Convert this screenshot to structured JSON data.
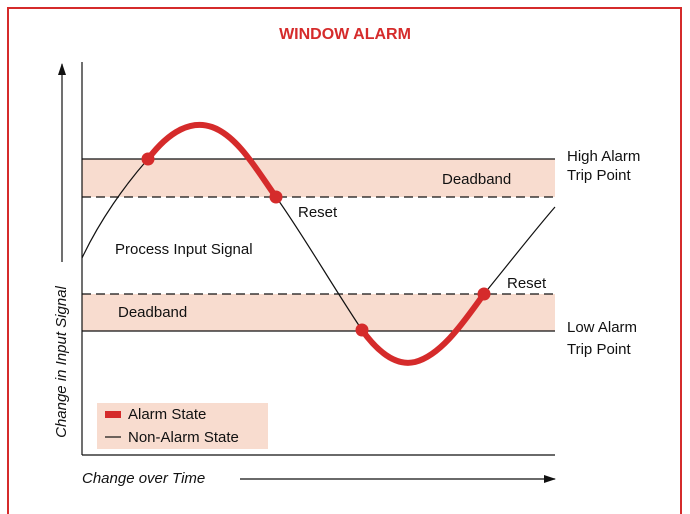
{
  "title": "WINDOW ALARM",
  "high_trip": {
    "line1": "High Alarm",
    "line2": "Trip Point"
  },
  "low_trip": {
    "line1": "Low Alarm",
    "line2": "Trip Point"
  },
  "upper_deadband": "Deadband",
  "lower_deadband": "Deadband",
  "upper_reset": "Reset",
  "lower_reset": "Reset",
  "signal_label": "Process Input Signal",
  "legend": {
    "alarm": "Alarm State",
    "non_alarm": "Non-Alarm State"
  },
  "y_axis_label": "Change in Input Signal",
  "x_axis_label": "Change over Time"
}
